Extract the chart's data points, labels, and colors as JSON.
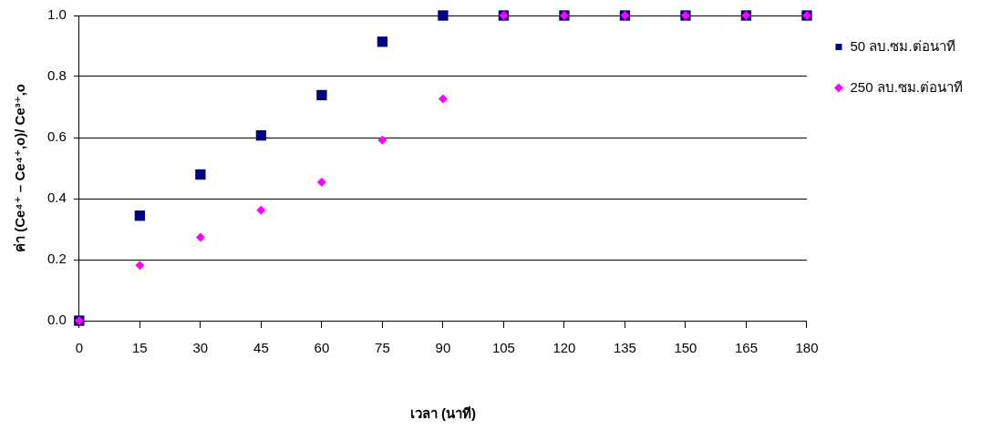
{
  "chart_data": {
    "type": "scatter",
    "xlabel": "เวลา (นาที)",
    "ylabel": "ค่า (Ce⁴⁺ – Ce⁴⁺,o)/ Ce³⁺,o",
    "x": [
      0,
      15,
      30,
      45,
      60,
      75,
      90,
      105,
      120,
      135,
      150,
      165,
      180
    ],
    "series": [
      {
        "name": "50 ลบ.ซม.ต่อนาที",
        "color": "#000080",
        "marker": "square",
        "values": [
          0,
          0.344,
          0.479,
          0.607,
          0.739,
          0.914,
          1,
          1,
          1,
          1,
          1,
          1,
          1
        ]
      },
      {
        "name": "250 ลบ.ซม.ต่อนาที",
        "color": "#ff00ff",
        "marker": "diamond",
        "values": [
          0,
          0.181,
          0.273,
          0.362,
          0.454,
          0.592,
          0.727,
          1,
          1,
          1,
          1,
          1,
          1
        ]
      }
    ],
    "xlim": [
      0,
      180
    ],
    "xticks": [
      0,
      15,
      30,
      45,
      60,
      75,
      90,
      105,
      120,
      135,
      150,
      165,
      180
    ],
    "ylim": [
      0,
      1
    ],
    "yticks": [
      {
        "value": 0,
        "label": "0.0"
      },
      {
        "value": 0.2,
        "label": "0.2"
      },
      {
        "value": 0.4,
        "label": "0.4"
      },
      {
        "value": 0.6,
        "label": "0.6"
      },
      {
        "value": 0.8,
        "label": "0.8"
      },
      {
        "value": 1,
        "label": "1.0"
      }
    ],
    "grid": "y",
    "legend": "right"
  }
}
